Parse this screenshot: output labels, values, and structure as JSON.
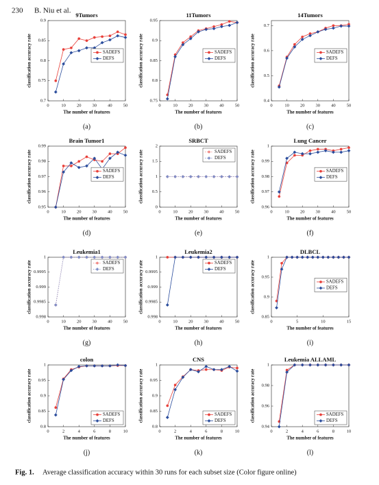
{
  "header": {
    "page": "230",
    "authors": "B. Niu et al."
  },
  "caption": {
    "label": "Fig. 1.",
    "text": "Average classification accuracy within 30 runs for each subset size (Color figure online)"
  },
  "chart_data": [
    {
      "type": "line",
      "title": "9Tumors",
      "label": "(a)",
      "xlabel": "The number of features",
      "ylabel": "classification accuracy rate",
      "x": [
        5,
        10,
        15,
        20,
        25,
        30,
        35,
        40,
        45,
        50
      ],
      "xlim": [
        0,
        50
      ],
      "xticks": [
        0,
        10,
        20,
        30,
        40,
        50
      ],
      "ylim": [
        0.7,
        0.9
      ],
      "yticks": [
        0.7,
        0.75,
        0.8,
        0.85,
        0.9
      ],
      "legend": "center right",
      "line_style": "solid",
      "series": [
        {
          "name": "SADEFS",
          "color": "#e8403a",
          "marker": "circle",
          "values": [
            0.75,
            0.828,
            0.832,
            0.855,
            0.85,
            0.858,
            0.86,
            0.862,
            0.872,
            0.865
          ]
        },
        {
          "name": "DEFS",
          "color": "#2a4c9c",
          "marker": "diamond",
          "values": [
            0.722,
            0.792,
            0.82,
            0.825,
            0.832,
            0.832,
            0.845,
            0.852,
            0.862,
            0.858
          ]
        }
      ]
    },
    {
      "type": "line",
      "title": "11Tumors",
      "label": "(b)",
      "xlabel": "The number of features",
      "ylabel": "classification accuracy rate",
      "x": [
        5,
        10,
        15,
        20,
        25,
        30,
        35,
        40,
        45,
        50
      ],
      "xlim": [
        0,
        50
      ],
      "xticks": [
        0,
        10,
        20,
        30,
        40,
        50
      ],
      "ylim": [
        0.75,
        0.95
      ],
      "yticks": [
        0.75,
        0.8,
        0.85,
        0.9,
        0.95
      ],
      "legend": "center right",
      "line_style": "solid",
      "series": [
        {
          "name": "SADEFS",
          "color": "#e8403a",
          "marker": "circle",
          "values": [
            0.765,
            0.865,
            0.895,
            0.91,
            0.925,
            0.93,
            0.935,
            0.94,
            0.948,
            0.945
          ]
        },
        {
          "name": "DEFS",
          "color": "#2a4c9c",
          "marker": "diamond",
          "values": [
            0.755,
            0.86,
            0.89,
            0.905,
            0.922,
            0.928,
            0.93,
            0.935,
            0.938,
            0.945
          ]
        }
      ]
    },
    {
      "type": "line",
      "title": "14Tumors",
      "label": "(c)",
      "xlabel": "The number of features",
      "ylabel": "classification accuracy rate",
      "x": [
        5,
        10,
        15,
        20,
        25,
        30,
        35,
        40,
        45,
        50
      ],
      "xlim": [
        0,
        50
      ],
      "xticks": [
        0,
        10,
        20,
        30,
        40,
        50
      ],
      "ylim": [
        0.4,
        0.72
      ],
      "yticks": [
        0.4,
        0.5,
        0.6,
        0.7
      ],
      "legend": "center right",
      "line_style": "solid",
      "series": [
        {
          "name": "SADEFS",
          "color": "#e8403a",
          "marker": "circle",
          "values": [
            0.46,
            0.575,
            0.625,
            0.655,
            0.668,
            0.675,
            0.69,
            0.7,
            0.7,
            0.705
          ]
        },
        {
          "name": "DEFS",
          "color": "#2a4c9c",
          "marker": "diamond",
          "values": [
            0.455,
            0.57,
            0.615,
            0.645,
            0.66,
            0.675,
            0.685,
            0.69,
            0.698,
            0.698
          ]
        }
      ]
    },
    {
      "type": "line",
      "title": "Brain Tumor1",
      "label": "(d)",
      "xlabel": "The number of features",
      "ylabel": "classification accuracy rate",
      "x": [
        5,
        10,
        15,
        20,
        25,
        30,
        35,
        40,
        45,
        50
      ],
      "xlim": [
        0,
        50
      ],
      "xticks": [
        0,
        10,
        20,
        30,
        40,
        50
      ],
      "ylim": [
        0.95,
        0.99
      ],
      "yticks": [
        0.95,
        0.96,
        0.97,
        0.98,
        0.99
      ],
      "legend": "center right",
      "line_style": "solid",
      "series": [
        {
          "name": "SADEFS",
          "color": "#e8403a",
          "marker": "circle",
          "values": [
            0.95,
            0.977,
            0.977,
            0.98,
            0.983,
            0.981,
            0.98,
            0.985,
            0.985,
            0.989
          ]
        },
        {
          "name": "DEFS",
          "color": "#2a4c9c",
          "marker": "diamond",
          "values": [
            0.95,
            0.973,
            0.979,
            0.976,
            0.977,
            0.982,
            0.975,
            0.982,
            0.986,
            0.984
          ]
        }
      ]
    },
    {
      "type": "line",
      "title": "SRBCT",
      "label": "(e)",
      "xlabel": "The number of features",
      "ylabel": "classification accuracy rate",
      "x": [
        5,
        10,
        15,
        20,
        25,
        30,
        35,
        40,
        45,
        50
      ],
      "xlim": [
        0,
        50
      ],
      "xticks": [
        0,
        10,
        20,
        30,
        40,
        50
      ],
      "ylim": [
        0,
        2
      ],
      "yticks": [
        0,
        0.5,
        1,
        1.5,
        2
      ],
      "legend": "upper right",
      "line_style": "dotted",
      "series": [
        {
          "name": "SADEFS",
          "color": "#f08a86",
          "marker": "circle",
          "values": [
            1,
            1,
            1,
            1,
            1,
            1,
            1,
            1,
            1,
            1
          ]
        },
        {
          "name": "DEFS",
          "color": "#7f8fc8",
          "marker": "diamond",
          "values": [
            1,
            1,
            1,
            1,
            1,
            1,
            1,
            1,
            1,
            1
          ]
        }
      ]
    },
    {
      "type": "line",
      "title": "Lung Cancer",
      "label": "(f)",
      "xlabel": "The number of features",
      "ylabel": "classification accuracy rate",
      "x": [
        5,
        10,
        15,
        20,
        25,
        30,
        35,
        40,
        45,
        50
      ],
      "xlim": [
        0,
        50
      ],
      "xticks": [
        0,
        10,
        20,
        30,
        40,
        50
      ],
      "ylim": [
        0.96,
        1
      ],
      "yticks": [
        0.96,
        0.97,
        0.98,
        0.99,
        1
      ],
      "legend": "center right",
      "line_style": "solid",
      "series": [
        {
          "name": "SADEFS",
          "color": "#e8403a",
          "marker": "circle",
          "values": [
            0.967,
            0.989,
            0.994,
            0.994,
            0.997,
            0.998,
            0.998,
            0.997,
            0.998,
            0.999
          ]
        },
        {
          "name": "DEFS",
          "color": "#2a4c9c",
          "marker": "diamond",
          "values": [
            0.97,
            0.992,
            0.996,
            0.995,
            0.995,
            0.996,
            0.997,
            0.996,
            0.996,
            0.997
          ]
        }
      ]
    },
    {
      "type": "line",
      "title": "Leukemia1",
      "label": "(g)",
      "xlabel": "The number of features",
      "ylabel": "classification accuracy rate",
      "x": [
        5,
        10,
        15,
        20,
        25,
        30,
        35,
        40,
        45,
        50
      ],
      "xlim": [
        0,
        50
      ],
      "xticks": [
        0,
        10,
        20,
        30,
        40,
        50
      ],
      "ylim": [
        0.998,
        1
      ],
      "yticks": [
        0.998,
        0.9985,
        0.999,
        0.9995,
        1
      ],
      "legend": "upper right",
      "line_style": "dotted",
      "series": [
        {
          "name": "SADEFS",
          "color": "#f08a86",
          "marker": "circle",
          "values": [
            0.9984,
            1,
            1,
            1,
            1,
            1,
            1,
            1,
            1,
            1
          ]
        },
        {
          "name": "DEFS",
          "color": "#7f8fc8",
          "marker": "diamond",
          "values": [
            0.9984,
            1,
            1,
            1,
            1,
            1,
            1,
            1,
            1,
            1
          ]
        }
      ]
    },
    {
      "type": "line",
      "title": "Leukemia2",
      "label": "(h)",
      "xlabel": "The number of features",
      "ylabel": "classification accuracy rate",
      "x": [
        5,
        10,
        15,
        20,
        25,
        30,
        35,
        40,
        45,
        50
      ],
      "xlim": [
        0,
        50
      ],
      "xticks": [
        0,
        10,
        20,
        30,
        40,
        50
      ],
      "ylim": [
        0.998,
        1
      ],
      "yticks": [
        0.998,
        0.9985,
        0.999,
        0.9995,
        1
      ],
      "legend": "upper right",
      "line_style": "solid",
      "series": [
        {
          "name": "SADEFS",
          "color": "#e8403a",
          "marker": "circle",
          "values": [
            1,
            1,
            1,
            1,
            1,
            1,
            1,
            1,
            1,
            1
          ]
        },
        {
          "name": "DEFS",
          "color": "#2a4c9c",
          "marker": "diamond",
          "values": [
            0.9984,
            1,
            1,
            1,
            1,
            1,
            1,
            1,
            1,
            1
          ]
        }
      ]
    },
    {
      "type": "line",
      "title": "DLBCL",
      "label": "(i)",
      "xlabel": "The number of features",
      "ylabel": "classification accuracy rate",
      "x": [
        1,
        2,
        3,
        4,
        5,
        6,
        7,
        8,
        9,
        10,
        11,
        12,
        13,
        14,
        15
      ],
      "xlim": [
        0,
        15
      ],
      "xticks": [
        0,
        5,
        10,
        15
      ],
      "ylim": [
        0.85,
        1
      ],
      "yticks": [
        0.85,
        0.9,
        0.95,
        1
      ],
      "legend": "center right",
      "line_style": "solid",
      "series": [
        {
          "name": "SADEFS",
          "color": "#e8403a",
          "marker": "circle",
          "values": [
            0.89,
            0.985,
            1,
            1,
            1,
            1,
            1,
            1,
            1,
            1,
            1,
            1,
            1,
            1,
            1
          ]
        },
        {
          "name": "DEFS",
          "color": "#2a4c9c",
          "marker": "diamond",
          "values": [
            0.873,
            0.97,
            1,
            1,
            1,
            1,
            1,
            1,
            1,
            1,
            1,
            1,
            1,
            1,
            1
          ]
        }
      ]
    },
    {
      "type": "line",
      "title": "colon",
      "label": "(j)",
      "xlabel": "The number of features",
      "ylabel": "classification accuracy rate",
      "x": [
        1,
        2,
        3,
        4,
        5,
        6,
        7,
        8,
        9,
        10
      ],
      "xlim": [
        0,
        10
      ],
      "xticks": [
        0,
        2,
        4,
        6,
        8,
        10
      ],
      "ylim": [
        0.8,
        1
      ],
      "yticks": [
        0.8,
        0.85,
        0.9,
        0.95,
        1
      ],
      "legend": "lower right",
      "line_style": "solid",
      "series": [
        {
          "name": "SADEFS",
          "color": "#e8403a",
          "marker": "circle",
          "values": [
            0.862,
            0.955,
            0.985,
            0.993,
            0.997,
            0.997,
            0.997,
            0.997,
            0.998,
            0.998
          ]
        },
        {
          "name": "DEFS",
          "color": "#2a4c9c",
          "marker": "diamond",
          "values": [
            0.838,
            0.953,
            0.982,
            0.995,
            0.997,
            0.997,
            0.997,
            0.997,
            1,
            0.998
          ]
        }
      ]
    },
    {
      "type": "line",
      "title": "CNS",
      "label": "(k)",
      "xlabel": "The number of features",
      "ylabel": "classification accuracy rate",
      "x": [
        1,
        2,
        3,
        4,
        5,
        6,
        7,
        8,
        9,
        10
      ],
      "xlim": [
        0,
        10
      ],
      "xticks": [
        0,
        2,
        4,
        6,
        8,
        10
      ],
      "ylim": [
        0.8,
        1
      ],
      "yticks": [
        0.8,
        0.85,
        0.9,
        0.95,
        1
      ],
      "legend": "lower right",
      "line_style": "solid",
      "series": [
        {
          "name": "SADEFS",
          "color": "#e8403a",
          "marker": "circle",
          "values": [
            0.868,
            0.935,
            0.962,
            0.985,
            0.982,
            0.985,
            0.985,
            0.982,
            0.993,
            0.99
          ]
        },
        {
          "name": "DEFS",
          "color": "#2a4c9c",
          "marker": "diamond",
          "values": [
            0.83,
            0.92,
            0.96,
            0.985,
            0.978,
            0.995,
            0.985,
            0.985,
            0.995,
            0.98
          ]
        }
      ]
    },
    {
      "type": "line",
      "title": "Leukemia ALLAML",
      "label": "(l)",
      "xlabel": "The number of features",
      "ylabel": "classification accuracy rate",
      "x": [
        1,
        2,
        3,
        4,
        5,
        6,
        7,
        8,
        9,
        10
      ],
      "xlim": [
        0,
        10
      ],
      "xticks": [
        0,
        2,
        4,
        6,
        8,
        10
      ],
      "ylim": [
        0.94,
        1
      ],
      "yticks": [
        0.94,
        0.96,
        0.98,
        1
      ],
      "legend": "lower right",
      "line_style": "solid",
      "series": [
        {
          "name": "SADEFS",
          "color": "#e8403a",
          "marker": "circle",
          "values": [
            0.945,
            0.995,
            1,
            1,
            1,
            1,
            1,
            1,
            1,
            1
          ]
        },
        {
          "name": "DEFS",
          "color": "#2a4c9c",
          "marker": "diamond",
          "values": [
            0.94,
            0.993,
            1,
            1,
            1,
            1,
            1,
            1,
            1,
            1
          ]
        }
      ]
    }
  ]
}
